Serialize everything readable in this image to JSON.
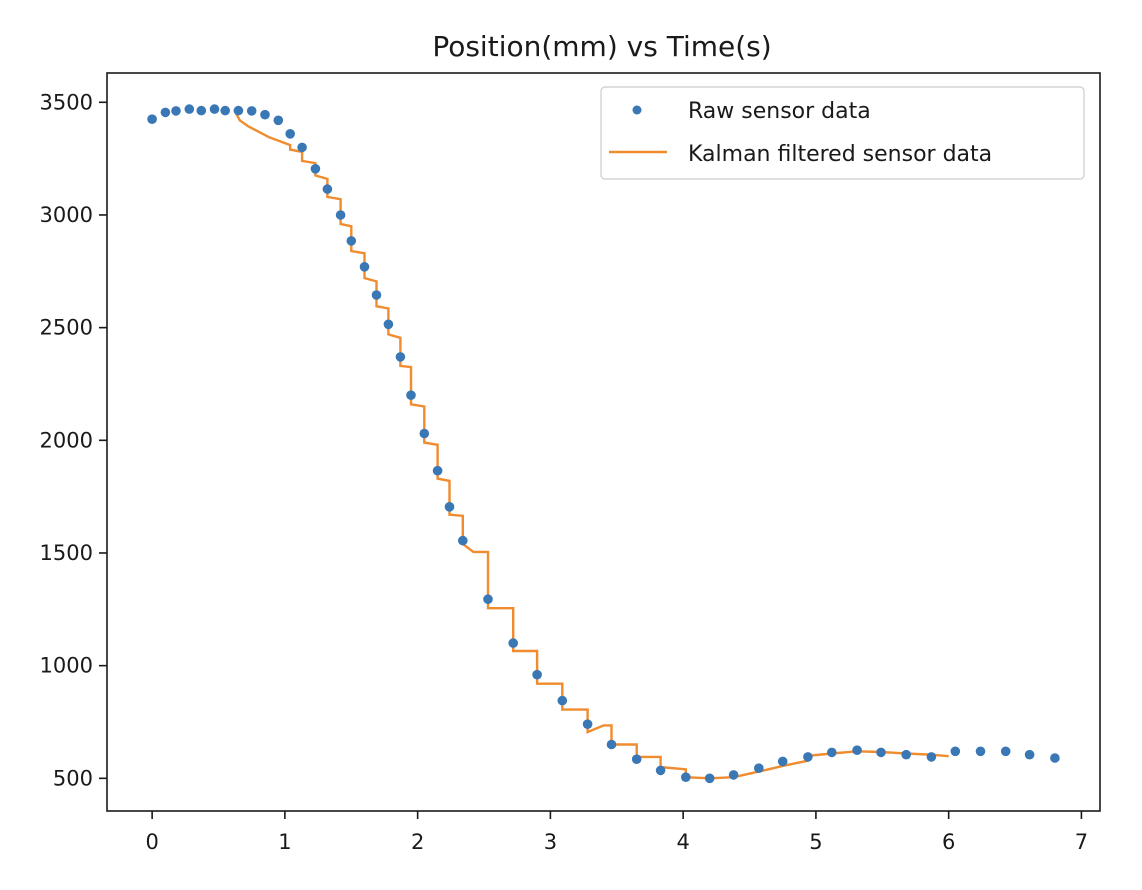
{
  "chart_data": {
    "type": "scatter",
    "title": "Position(mm) vs Time(s)",
    "xlabel": "",
    "ylabel": "",
    "xlim": [
      -0.34,
      7.14
    ],
    "ylim": [
      355,
      3630
    ],
    "xticks": [
      0,
      1,
      2,
      3,
      4,
      5,
      6,
      7
    ],
    "yticks": [
      500,
      1000,
      1500,
      2000,
      2500,
      3000,
      3500
    ],
    "grid": false,
    "legend_position": "top-right",
    "colors": {
      "raw": "#3a78b5",
      "kalman": "#f08b2e"
    },
    "series": [
      {
        "name": "Raw sensor data",
        "style": "markers",
        "x": [
          0.0,
          0.1,
          0.18,
          0.28,
          0.37,
          0.47,
          0.55,
          0.65,
          0.75,
          0.85,
          0.95,
          1.04,
          1.13,
          1.23,
          1.32,
          1.42,
          1.5,
          1.6,
          1.69,
          1.78,
          1.87,
          1.95,
          2.05,
          2.15,
          2.24,
          2.34,
          2.53,
          2.72,
          2.9,
          3.09,
          3.28,
          3.46,
          3.65,
          3.83,
          4.02,
          4.2,
          4.38,
          4.57,
          4.75,
          4.94,
          5.12,
          5.31,
          5.49,
          5.68,
          5.87,
          6.05,
          6.24,
          6.43,
          6.61,
          6.8
        ],
        "y": [
          3425,
          3455,
          3462,
          3470,
          3463,
          3470,
          3463,
          3463,
          3462,
          3445,
          3420,
          3360,
          3300,
          3205,
          3115,
          3000,
          2885,
          2770,
          2645,
          2515,
          2370,
          2200,
          2030,
          1865,
          1705,
          1555,
          1295,
          1100,
          960,
          845,
          740,
          650,
          585,
          535,
          505,
          500,
          515,
          545,
          575,
          595,
          615,
          625,
          615,
          605,
          595,
          620,
          620,
          620,
          605,
          590
        ]
      },
      {
        "name": "Kalman filtered sensor data",
        "style": "line",
        "points": [
          [
            0.62,
            3465
          ],
          [
            0.66,
            3420
          ],
          [
            0.72,
            3395
          ],
          [
            0.8,
            3370
          ],
          [
            0.88,
            3345
          ],
          [
            0.95,
            3330
          ],
          [
            1.04,
            3310
          ],
          [
            1.04,
            3290
          ],
          [
            1.13,
            3280
          ],
          [
            1.13,
            3240
          ],
          [
            1.23,
            3230
          ],
          [
            1.23,
            3175
          ],
          [
            1.32,
            3160
          ],
          [
            1.32,
            3080
          ],
          [
            1.42,
            3070
          ],
          [
            1.42,
            2960
          ],
          [
            1.5,
            2950
          ],
          [
            1.5,
            2840
          ],
          [
            1.6,
            2830
          ],
          [
            1.6,
            2720
          ],
          [
            1.69,
            2705
          ],
          [
            1.69,
            2595
          ],
          [
            1.78,
            2585
          ],
          [
            1.78,
            2470
          ],
          [
            1.87,
            2455
          ],
          [
            1.87,
            2330
          ],
          [
            1.95,
            2325
          ],
          [
            1.95,
            2160
          ],
          [
            2.05,
            2150
          ],
          [
            2.05,
            1990
          ],
          [
            2.15,
            1980
          ],
          [
            2.15,
            1830
          ],
          [
            2.24,
            1820
          ],
          [
            2.24,
            1670
          ],
          [
            2.34,
            1665
          ],
          [
            2.34,
            1540
          ],
          [
            2.42,
            1505
          ],
          [
            2.53,
            1505
          ],
          [
            2.53,
            1255
          ],
          [
            2.72,
            1255
          ],
          [
            2.72,
            1065
          ],
          [
            2.9,
            1065
          ],
          [
            2.9,
            920
          ],
          [
            3.09,
            920
          ],
          [
            3.09,
            805
          ],
          [
            3.28,
            805
          ],
          [
            3.28,
            705
          ],
          [
            3.4,
            735
          ],
          [
            3.46,
            735
          ],
          [
            3.46,
            650
          ],
          [
            3.65,
            650
          ],
          [
            3.65,
            595
          ],
          [
            3.83,
            595
          ],
          [
            3.83,
            550
          ],
          [
            4.02,
            540
          ],
          [
            4.02,
            505
          ],
          [
            4.2,
            500
          ],
          [
            4.38,
            505
          ],
          [
            4.57,
            530
          ],
          [
            4.75,
            555
          ],
          [
            4.94,
            578
          ],
          [
            4.94,
            600
          ],
          [
            5.12,
            610
          ],
          [
            5.31,
            620
          ],
          [
            5.49,
            617
          ],
          [
            5.68,
            610
          ],
          [
            5.87,
            605
          ],
          [
            6.0,
            598
          ]
        ]
      }
    ]
  }
}
